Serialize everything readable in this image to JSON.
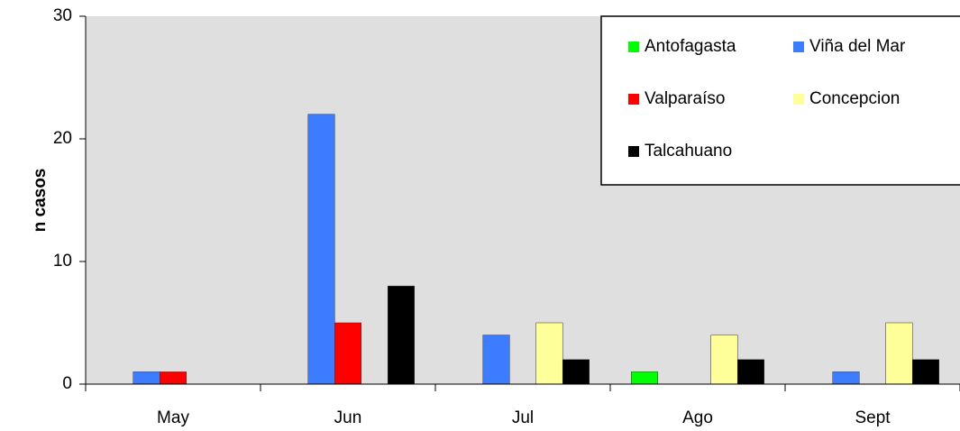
{
  "chart_data": {
    "type": "bar",
    "ylabel": "n casos",
    "categories": [
      "May",
      "Jun",
      "Jul",
      "Ago",
      "Sept"
    ],
    "series": [
      {
        "name": "Antofagasta",
        "color": "#00ff00",
        "values": [
          0,
          0,
          0,
          1,
          0
        ]
      },
      {
        "name": "Viña del Mar",
        "color": "#3d7bff",
        "values": [
          1,
          22,
          4,
          0,
          1
        ]
      },
      {
        "name": "Valparaíso",
        "color": "#ff0000",
        "values": [
          1,
          5,
          0,
          0,
          0
        ]
      },
      {
        "name": "Concepcion",
        "color": "#ffff99",
        "values": [
          0,
          0,
          5,
          4,
          5
        ]
      },
      {
        "name": "Talcahuano",
        "color": "#000000",
        "values": [
          0,
          8,
          2,
          2,
          2
        ]
      }
    ],
    "ylim": [
      0,
      30
    ],
    "yticks": [
      0,
      10,
      20,
      30
    ],
    "grid": false,
    "legend": "upper right"
  }
}
